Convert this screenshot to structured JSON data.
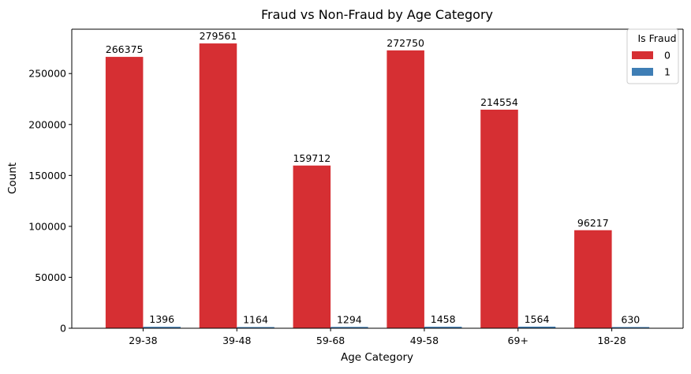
{
  "chart_data": {
    "type": "bar",
    "title": "Fraud vs Non-Fraud by Age Category",
    "xlabel": "Age Category",
    "ylabel": "Count",
    "categories": [
      "29-38",
      "39-48",
      "59-68",
      "49-58",
      "69+",
      "18-28"
    ],
    "series": [
      {
        "name": "0",
        "color": "#d62f33",
        "values": [
          266375,
          279561,
          159712,
          272750,
          214554,
          96217
        ]
      },
      {
        "name": "1",
        "color": "#3f7eb5",
        "values": [
          1396,
          1164,
          1294,
          1458,
          1564,
          630
        ]
      }
    ],
    "ylim": [
      0,
      293539
    ],
    "yticks": [
      0,
      50000,
      100000,
      150000,
      200000,
      250000
    ],
    "legend": {
      "title": "Is Fraud",
      "placement": "top-right"
    },
    "grid": false,
    "data_labels": true
  }
}
